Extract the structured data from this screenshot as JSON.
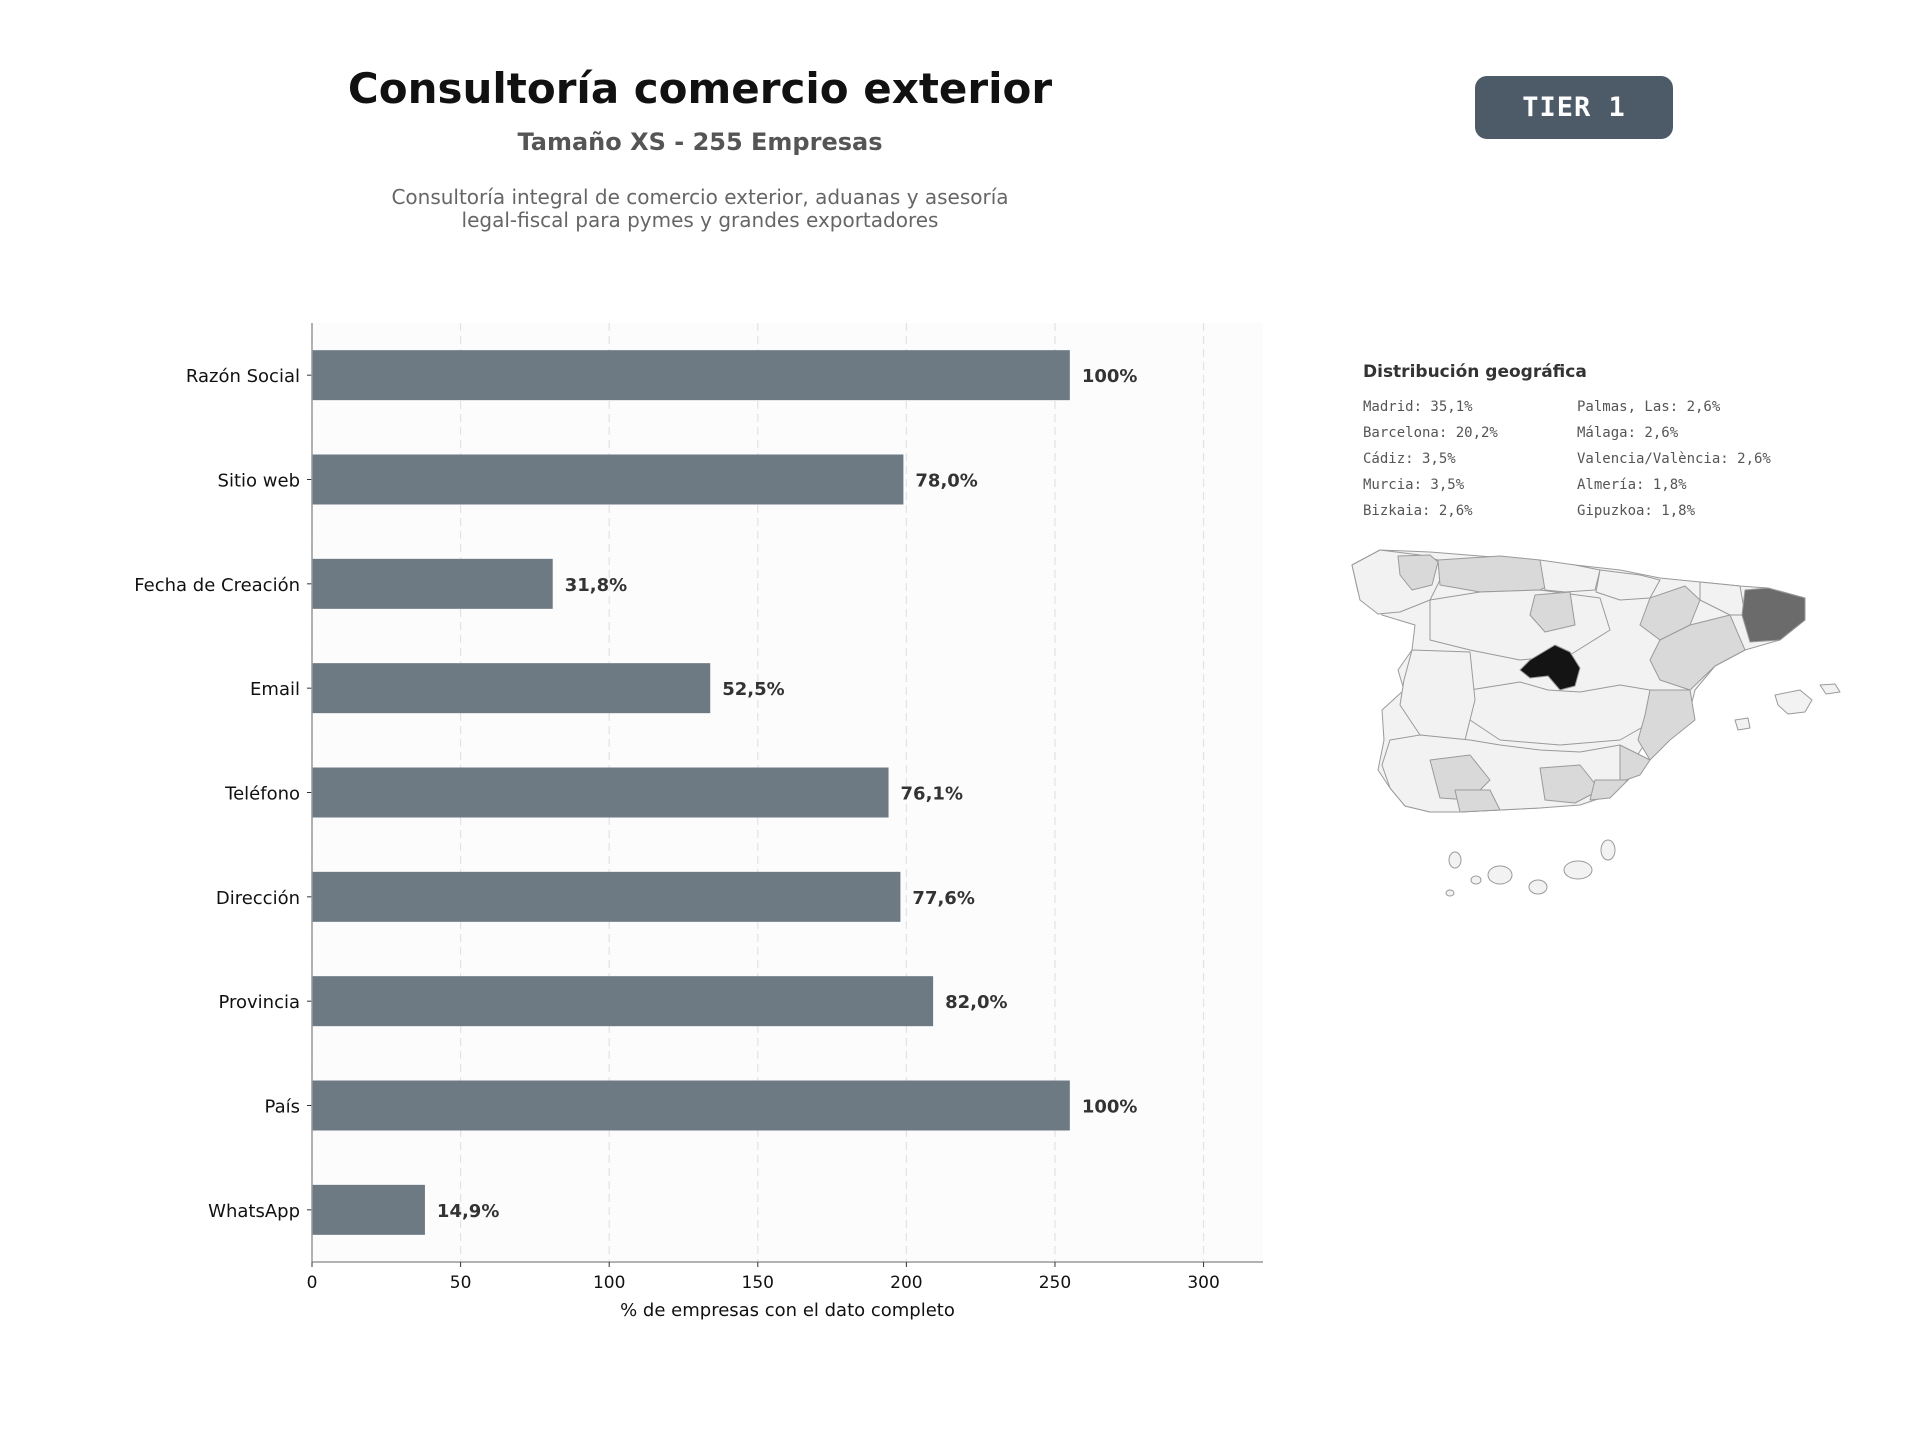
{
  "header": {
    "title": "Consultoría comercio exterior",
    "subtitle": "Tamaño XS - 255 Empresas",
    "description_line1": "Consultoría integral de comercio exterior, aduanas y asesoría",
    "description_line2": "legal-fiscal para pymes y grandes exportadores"
  },
  "badge": {
    "label": "TIER 1"
  },
  "geo": {
    "title": "Distribución geográfica",
    "items": [
      "Madrid: 35,1%",
      "Palmas, Las: 2,6%",
      "Barcelona: 20,2%",
      "Málaga: 2,6%",
      "Cádiz: 3,5%",
      "Valencia/València: 2,6%",
      "Murcia: 3,5%",
      "Almería: 1,8%",
      "Bizkaia: 2,6%",
      "Gipuzkoa: 1,8%"
    ]
  },
  "chart_data": {
    "type": "bar",
    "orientation": "horizontal",
    "categories": [
      "Razón Social",
      "Sitio web",
      "Fecha de Creación",
      "Email",
      "Teléfono",
      "Dirección",
      "Provincia",
      "País",
      "WhatsApp"
    ],
    "values": [
      255,
      199,
      81,
      134,
      194,
      198,
      209,
      255,
      38
    ],
    "data_labels": [
      "100%",
      "78,0%",
      "31,8%",
      "52,5%",
      "76,1%",
      "77,6%",
      "82,0%",
      "100%",
      "14,9%"
    ],
    "xlabel": "% de empresas con el dato completo",
    "xlim": [
      0,
      320
    ],
    "xticks": [
      0,
      50,
      100,
      150,
      200,
      250,
      300
    ],
    "grid": "vertical dashed",
    "colors": {
      "bar": "#6e7a83",
      "plot_bg": "#fcfcfc",
      "label": "#333333"
    }
  },
  "map_colors": {
    "highest": "#141414",
    "high": "#6b6b6b",
    "mid": "#d9d9d9",
    "low": "#f2f2f2",
    "border": "#9a9a9a"
  }
}
